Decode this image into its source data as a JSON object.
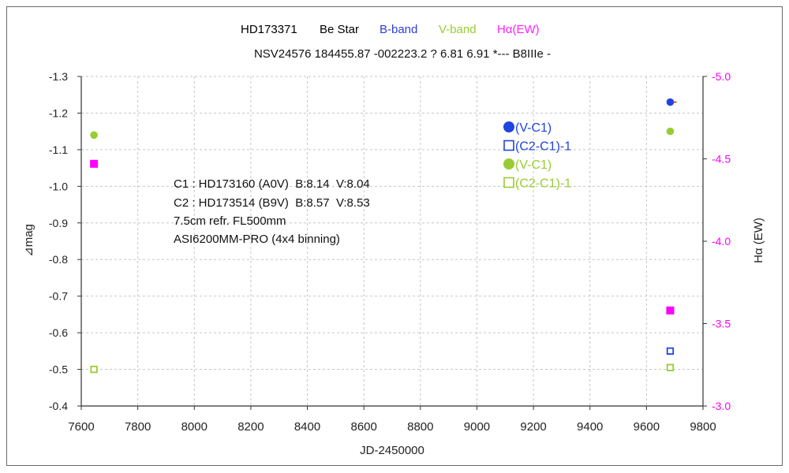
{
  "chart_data": {
    "type": "scatter",
    "title_parts": [
      {
        "text": "HD173371",
        "color": "#000000"
      },
      {
        "text": "Be Star",
        "color": "#000000"
      },
      {
        "text": "B-band",
        "color": "#2b3fd6"
      },
      {
        "text": "V-band",
        "color": "#99cc33"
      },
      {
        "text": "Hα(EW)",
        "color": "#ff22ff"
      }
    ],
    "subtitle": "NSV24576 184455.87 -002223.2 ? 6.81 6.91 *--- B8IIIe -",
    "xlabel": "JD-2450000",
    "ylabel": "⊿mag",
    "y2label": "Hα (EW)",
    "y2_color": "#ff00ff",
    "xlim": [
      7600,
      9800
    ],
    "ylim": [
      -1.3,
      -0.4
    ],
    "y_inverted": true,
    "y2lim": [
      -5.0,
      -3.0
    ],
    "y2_inverted": true,
    "xticks": [
      "7600",
      "7800",
      "8000",
      "8200",
      "8400",
      "8600",
      "8800",
      "9000",
      "9200",
      "9400",
      "9600",
      "9800"
    ],
    "yticks": [
      "-1.3",
      "-1.2",
      "-1.1",
      "-1.0",
      "-0.9",
      "-0.8",
      "-0.7",
      "-0.6",
      "-0.5",
      "-0.4"
    ],
    "y2ticks": [
      "-5.0",
      "-4.5",
      "-4.0",
      "-3.5",
      "-3.0"
    ],
    "grid": true,
    "legend_placement": "upper-right inside plot",
    "series": [
      {
        "name": "(V-C1)",
        "color": "#1f45e0",
        "marker": "filled-circle",
        "axis": "left",
        "in_legend": true,
        "x": [
          9684
        ],
        "y": [
          -1.23
        ]
      },
      {
        "name": "(C2-C1)-1",
        "color": "#1f45e0",
        "marker": "open-square",
        "axis": "left",
        "in_legend": true,
        "x": [
          9684
        ],
        "y": [
          -0.55
        ]
      },
      {
        "name": "(V-C1)",
        "color": "#99cc33",
        "marker": "filled-circle",
        "axis": "left",
        "in_legend": true,
        "x": [
          7645,
          9684
        ],
        "y": [
          -1.14,
          -1.15
        ]
      },
      {
        "name": "(C2-C1)-1",
        "color": "#99cc33",
        "marker": "open-square",
        "axis": "left",
        "in_legend": true,
        "x": [
          7645,
          9684
        ],
        "y": [
          -0.5,
          -0.505
        ]
      },
      {
        "name": "Hα(EW)",
        "color": "#ff00ff",
        "marker": "filled-square",
        "axis": "right",
        "in_legend": false,
        "x": [
          7645,
          9684
        ],
        "y": [
          -4.47,
          -3.58
        ]
      }
    ],
    "annotations": [
      "C1 : HD173160 (A0V)  B:8.14  V:8.04",
      "C2 : HD173514 (B9V)  B:8.57  V:8.53",
      "7.5cm refr. FL500mm",
      "ASI6200MM-PRO (4x4 binning)"
    ]
  }
}
